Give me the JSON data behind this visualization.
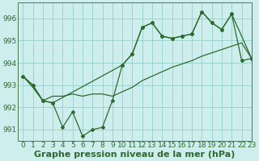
{
  "title": "Graphe pression niveau de la mer (hPa)",
  "bg_color": "#ceeeed",
  "grid_color": "#9dd4d0",
  "line_color": "#2d6a2d",
  "xlim": [
    -0.5,
    23
  ],
  "ylim": [
    990.5,
    996.7
  ],
  "yticks": [
    991,
    992,
    993,
    994,
    995,
    996
  ],
  "xticks": [
    0,
    1,
    2,
    3,
    4,
    5,
    6,
    7,
    8,
    9,
    10,
    11,
    12,
    13,
    14,
    15,
    16,
    17,
    18,
    19,
    20,
    21,
    22,
    23
  ],
  "series1_x": [
    0,
    1,
    2,
    3,
    4,
    5,
    6,
    7,
    8,
    9,
    10,
    11,
    12,
    13,
    14,
    15,
    16,
    17,
    18,
    19,
    20,
    21,
    22,
    23
  ],
  "series1_y": [
    993.4,
    992.9,
    992.3,
    992.5,
    992.5,
    992.6,
    992.5,
    992.6,
    992.6,
    992.5,
    992.7,
    992.9,
    993.2,
    993.4,
    993.6,
    993.8,
    993.95,
    994.1,
    994.3,
    994.45,
    994.6,
    994.75,
    994.9,
    994.2
  ],
  "series2_x": [
    0,
    1,
    2,
    3,
    4,
    5,
    6,
    7,
    8,
    9,
    10,
    11,
    12,
    13,
    14,
    15,
    16,
    17,
    18,
    19,
    20,
    21,
    22,
    23
  ],
  "series2_y": [
    993.4,
    993.0,
    992.3,
    992.2,
    991.1,
    991.8,
    990.7,
    991.0,
    991.1,
    992.3,
    993.9,
    994.4,
    995.6,
    995.8,
    995.2,
    995.1,
    995.2,
    995.3,
    996.3,
    995.8,
    995.5,
    996.2,
    994.1,
    994.2
  ],
  "series3_x": [
    0,
    1,
    2,
    3,
    10,
    11,
    12,
    13,
    14,
    15,
    16,
    17,
    18,
    19,
    20,
    21,
    23
  ],
  "series3_y": [
    993.4,
    993.0,
    992.3,
    992.2,
    993.9,
    994.4,
    995.6,
    995.8,
    995.2,
    995.1,
    995.2,
    995.3,
    996.3,
    995.8,
    995.5,
    996.2,
    994.2
  ],
  "tick_fontsize": 6.5,
  "xlabel_fontsize": 8.0
}
